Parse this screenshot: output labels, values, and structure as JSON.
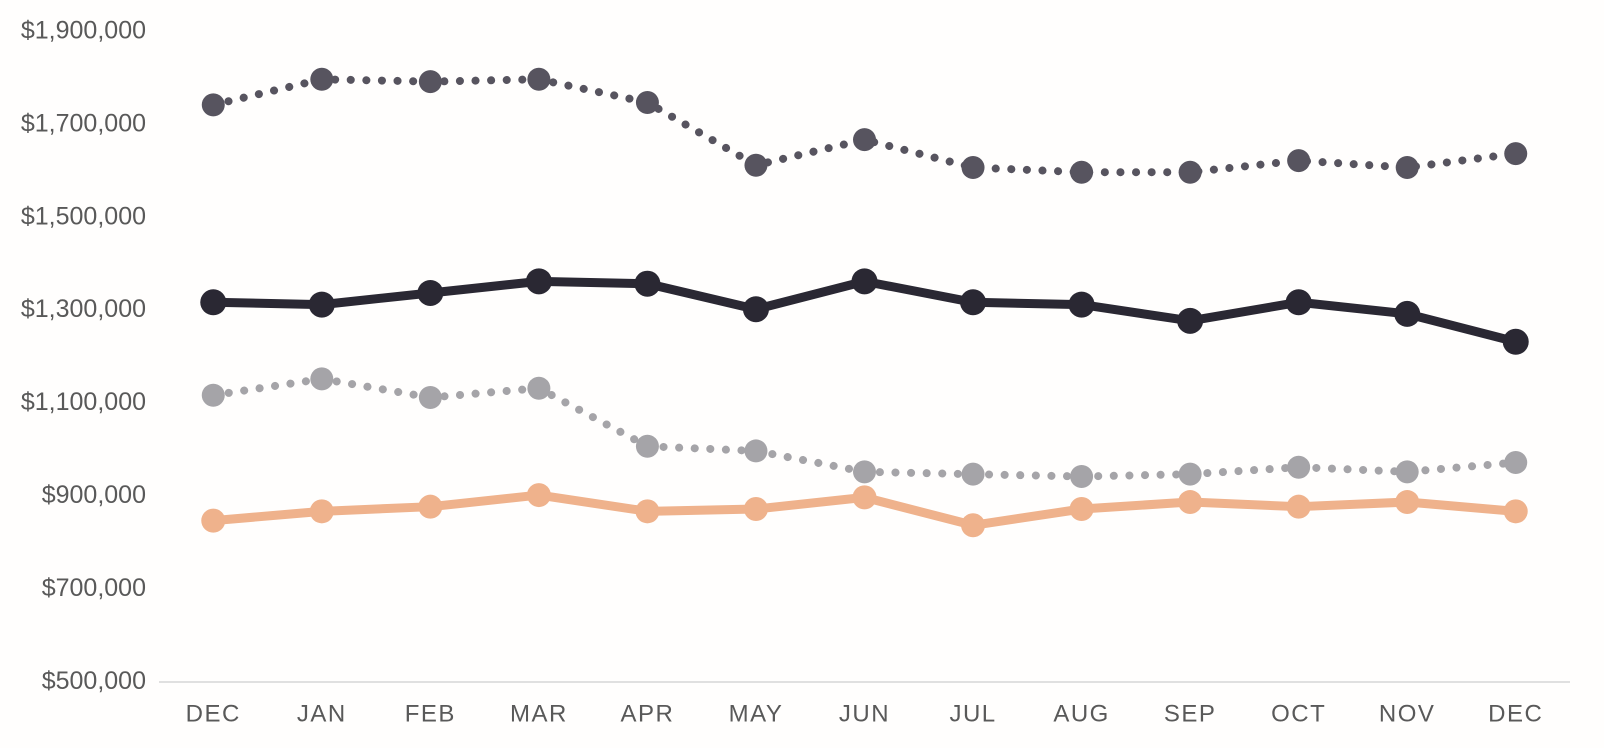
{
  "chart_data": {
    "type": "line",
    "title": "",
    "categories": [
      "DEC",
      "JAN",
      "FEB",
      "MAR",
      "APR",
      "MAY",
      "JUN",
      "JUL",
      "AUG",
      "SEP",
      "OCT",
      "NOV",
      "DEC"
    ],
    "series": [
      {
        "name": "upper-dark-dotted",
        "style": "dotted",
        "color": "#57545f",
        "marker_radius": 11.5,
        "values": [
          1740000,
          1795000,
          1790000,
          1795000,
          1745000,
          1610000,
          1665000,
          1605000,
          1595000,
          1595000,
          1620000,
          1605000,
          1635000
        ]
      },
      {
        "name": "black-solid",
        "style": "solid",
        "color": "#2a2833",
        "marker_radius": 13,
        "values": [
          1315000,
          1310000,
          1335000,
          1360000,
          1355000,
          1300000,
          1360000,
          1315000,
          1310000,
          1275000,
          1315000,
          1290000,
          1230000
        ]
      },
      {
        "name": "gray-dotted",
        "style": "dotted",
        "color": "#a5a4a8",
        "marker_radius": 11.5,
        "values": [
          1115000,
          1150000,
          1110000,
          1130000,
          1005000,
          995000,
          950000,
          945000,
          940000,
          945000,
          960000,
          950000,
          970000
        ]
      },
      {
        "name": "peach-solid",
        "style": "solid",
        "color": "#efb28c",
        "marker_radius": 12,
        "values": [
          845000,
          865000,
          875000,
          900000,
          865000,
          870000,
          895000,
          835000,
          870000,
          885000,
          875000,
          885000,
          865000
        ]
      }
    ],
    "y_axis": {
      "min": 500000,
      "max": 1900000,
      "step": 200000,
      "tick_labels": [
        "$1,900,000",
        "$1,700,000",
        "$1,500,000",
        "$1,300,000",
        "$1,100,000",
        "$900,000",
        "$700,000",
        "$500,000"
      ],
      "label_color": "#595959"
    },
    "x_axis": {
      "labels": [
        "DEC",
        "JAN",
        "FEB",
        "MAR",
        "APR",
        "MAY",
        "JUN",
        "JUL",
        "AUG",
        "SEP",
        "OCT",
        "NOV",
        "DEC"
      ],
      "line_color": "#d6d6d6",
      "label_color": "#595959"
    },
    "grid": "off",
    "legend": "none",
    "background": "#fffefd"
  }
}
